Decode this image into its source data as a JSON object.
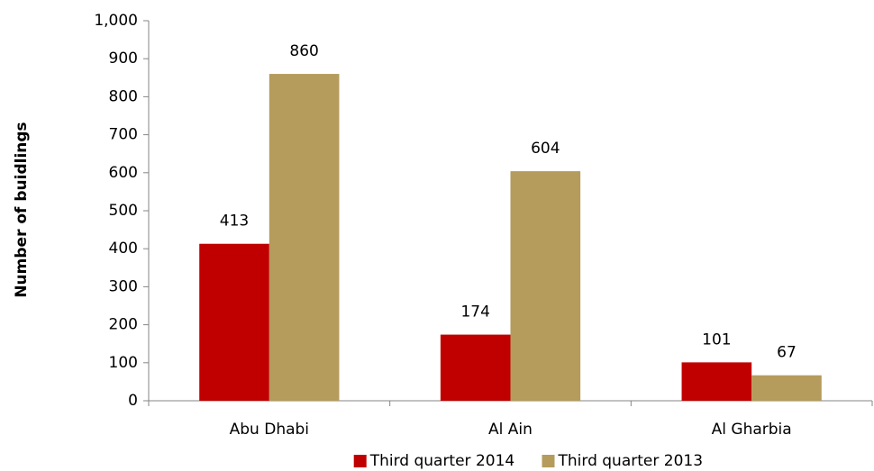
{
  "chart_data": {
    "type": "bar",
    "y_label": "Number of buidlings",
    "categories": [
      "Abu Dhabi",
      "Al Ain",
      "Al Gharbia"
    ],
    "series": [
      {
        "name": "Third quarter 2014",
        "color": "#c00000",
        "values": [
          413,
          174,
          101
        ]
      },
      {
        "name": "Third quarter 2013",
        "color": "#b59b5c",
        "values": [
          860,
          604,
          67
        ]
      }
    ],
    "ylim": [
      0,
      1000
    ],
    "yticks": [
      0,
      100,
      200,
      300,
      400,
      500,
      600,
      700,
      800,
      900,
      {
        "value": 1000,
        "label": "1,000"
      }
    ],
    "legend": "bottom"
  }
}
